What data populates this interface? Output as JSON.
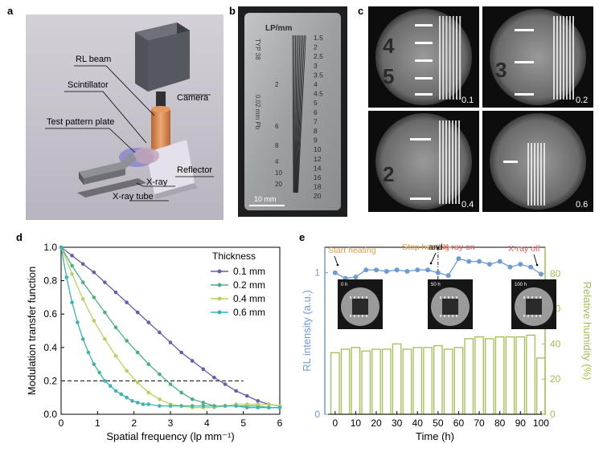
{
  "panel_labels": {
    "a": "a",
    "b": "b",
    "c": "c",
    "d": "d",
    "e": "e"
  },
  "panel_a": {
    "labels": {
      "camera": "Camera",
      "rl_beam": "RL beam",
      "scintillator": "Scintillator",
      "test_pattern": "Test pattern plate",
      "reflector": "Reflector",
      "xray": "X-ray",
      "xray_tube": "X-ray tube"
    },
    "colors": {
      "bg": "#c9c5ce",
      "camera": "#4d4f56",
      "beam": "#d9824a",
      "tube": "#707478"
    }
  },
  "panel_b": {
    "top_label": "LP/mm",
    "scale_left": [
      "TYP 38",
      "0.02 mm Pb"
    ],
    "left_numbers": [
      "2",
      "6",
      "8",
      "4",
      "10",
      "20"
    ],
    "right_numbers": [
      "1.5",
      "2",
      "2.5",
      "3",
      "3.5",
      "4",
      "4.5",
      "5",
      "6",
      "7",
      "8",
      "9",
      "10",
      "12",
      "14",
      "16",
      "18",
      "20"
    ],
    "scale_bar": "10 mm"
  },
  "panel_c": {
    "tiles": [
      {
        "digits": [
          "4",
          "5"
        ],
        "label": "0.1"
      },
      {
        "digits": [
          "3"
        ],
        "label": "0.2"
      },
      {
        "digits": [
          "2"
        ],
        "label": "0.4"
      },
      {
        "digits": [],
        "label": "0.6"
      }
    ]
  },
  "chart_data": [
    {
      "type": "line",
      "xlabel": "Spatial frequency (lp mm⁻¹)",
      "ylabel": "Modulation transfer function",
      "xlim": [
        0,
        6
      ],
      "ylim": [
        0,
        1.0
      ],
      "xticks": [
        0,
        1,
        2,
        3,
        4,
        5,
        6
      ],
      "yticks": [
        0.0,
        0.2,
        0.4,
        0.6,
        0.8,
        1.0
      ],
      "legend_title": "Thickness",
      "legend_position": "top-right",
      "reference_line": {
        "y": 0.2,
        "x_range": [
          0,
          5
        ],
        "style": "dashed"
      },
      "series": [
        {
          "name": "0.1 mm",
          "color": "#6b5aad",
          "x": [
            0,
            0.3,
            0.6,
            0.9,
            1.2,
            1.5,
            1.8,
            2.1,
            2.4,
            2.7,
            3.0,
            3.3,
            3.6,
            3.9,
            4.2,
            4.5,
            4.8,
            5.1,
            5.4,
            5.7,
            6.0
          ],
          "y": [
            1.0,
            0.95,
            0.9,
            0.85,
            0.79,
            0.73,
            0.67,
            0.61,
            0.55,
            0.49,
            0.43,
            0.37,
            0.32,
            0.27,
            0.22,
            0.18,
            0.14,
            0.11,
            0.08,
            0.06,
            0.05
          ]
        },
        {
          "name": "0.2 mm",
          "color": "#4aaf82",
          "x": [
            0,
            0.3,
            0.6,
            0.9,
            1.2,
            1.5,
            1.8,
            2.1,
            2.4,
            2.7,
            3.0,
            3.3,
            3.6,
            3.9,
            4.2,
            4.5,
            4.8,
            5.1,
            5.4,
            5.7,
            6.0
          ],
          "y": [
            1.0,
            0.89,
            0.79,
            0.7,
            0.61,
            0.52,
            0.44,
            0.37,
            0.3,
            0.24,
            0.18,
            0.13,
            0.09,
            0.07,
            0.05,
            0.05,
            0.05,
            0.05,
            0.05,
            0.04,
            0.04
          ]
        },
        {
          "name": "0.4 mm",
          "color": "#b7d35f",
          "x": [
            0,
            0.3,
            0.6,
            0.9,
            1.2,
            1.5,
            1.8,
            2.1,
            2.4,
            2.7,
            3.0,
            3.3,
            3.6,
            3.9,
            4.2,
            4.5,
            4.8,
            5.1,
            5.4,
            5.7,
            6.0
          ],
          "y": [
            1.0,
            0.84,
            0.69,
            0.56,
            0.45,
            0.35,
            0.26,
            0.19,
            0.13,
            0.09,
            0.06,
            0.05,
            0.04,
            0.04,
            0.04,
            0.05,
            0.06,
            0.06,
            0.06,
            0.06,
            0.05
          ]
        },
        {
          "name": "0.6 mm",
          "color": "#3bb5b0",
          "x": [
            0,
            0.15,
            0.3,
            0.45,
            0.6,
            0.75,
            0.9,
            1.05,
            1.2,
            1.35,
            1.5,
            1.65,
            1.8,
            1.95,
            2.1,
            2.25,
            2.4,
            2.7,
            3.0,
            3.3,
            3.6,
            3.9,
            4.2,
            4.5,
            4.8,
            5.1,
            5.4,
            5.7,
            6.0
          ],
          "y": [
            1.0,
            0.82,
            0.67,
            0.55,
            0.45,
            0.37,
            0.3,
            0.25,
            0.2,
            0.17,
            0.14,
            0.12,
            0.1,
            0.08,
            0.07,
            0.06,
            0.06,
            0.05,
            0.05,
            0.05,
            0.05,
            0.05,
            0.05,
            0.05,
            0.05,
            0.04,
            0.04,
            0.04,
            0.04
          ]
        }
      ]
    },
    {
      "type": "bar+line",
      "xlabel": "Time (h)",
      "ylabel_left": "RL intensity (a.u.)",
      "ylabel_right": "Relative humidity (%)",
      "xlim": [
        -5,
        102
      ],
      "xticks": [
        0,
        10,
        20,
        30,
        40,
        50,
        60,
        70,
        80,
        90,
        100
      ],
      "yticks_left": [
        "0",
        "1"
      ],
      "yticks_right": [
        0,
        20,
        40,
        60,
        80
      ],
      "ylim_right": [
        0,
        95
      ],
      "left_color": "#6f9bd4",
      "right_color": "#9fbf52",
      "vline_x": 50,
      "annotations": [
        {
          "text": "Start heating",
          "color": "#e39d4c",
          "x": 0
        },
        {
          "text": "Stop heating",
          "color": "#e39d4c",
          "x": 45
        },
        {
          "text": "and",
          "color": "#000000",
          "x": 50
        },
        {
          "text": "X-ray on",
          "color": "#e35b5b",
          "x": 52
        },
        {
          "text": "X-ray off",
          "color": "#e35b5b",
          "x": 100
        }
      ],
      "insets": [
        {
          "label": "0 h"
        },
        {
          "label": "50 h"
        },
        {
          "label": "100 h"
        }
      ],
      "rl_intensity": {
        "x": [
          0,
          5,
          10,
          15,
          20,
          25,
          30,
          35,
          40,
          45,
          50,
          55,
          60,
          65,
          70,
          75,
          80,
          85,
          90,
          95,
          100
        ],
        "y": [
          1.0,
          0.96,
          0.97,
          1.02,
          1.02,
          1.01,
          1.02,
          1.01,
          1.02,
          1.02,
          1.0,
          0.98,
          1.1,
          1.08,
          1.08,
          1.06,
          1.08,
          1.04,
          1.06,
          1.04,
          0.99
        ]
      },
      "humidity": {
        "x": [
          0,
          5,
          10,
          15,
          20,
          25,
          30,
          35,
          40,
          45,
          50,
          55,
          60,
          65,
          70,
          75,
          80,
          85,
          90,
          95,
          100
        ],
        "y": [
          35,
          37,
          38,
          36,
          37,
          37,
          40,
          37,
          38,
          38,
          39,
          37,
          38,
          43,
          44,
          43,
          44,
          44,
          44,
          45,
          32
        ]
      }
    }
  ]
}
